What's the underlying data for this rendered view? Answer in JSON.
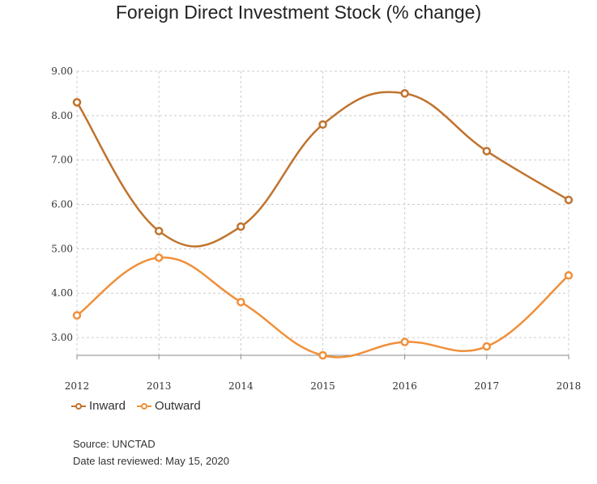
{
  "chart_data": {
    "type": "line",
    "title": "Foreign Direct Investment Stock (% change)",
    "x": [
      "2012",
      "2013",
      "2014",
      "2015",
      "2016",
      "2017",
      "2018"
    ],
    "ylim": [
      2.6,
      9.0
    ],
    "yticks": [
      "9.00",
      "8.00",
      "7.00",
      "6.00",
      "5.00",
      "4.00",
      "3.00"
    ],
    "ytick_values": [
      9,
      8,
      7,
      6,
      5,
      4,
      3
    ],
    "grid": true,
    "legend_position": "bottom-left",
    "series": [
      {
        "name": "Inward",
        "color": "#c0732e",
        "values": [
          8.3,
          5.4,
          5.5,
          7.8,
          8.5,
          7.2,
          6.1
        ]
      },
      {
        "name": "Outward",
        "color": "#f0903a",
        "values": [
          3.5,
          4.8,
          3.8,
          2.6,
          2.9,
          2.8,
          4.4
        ]
      }
    ]
  },
  "footer": {
    "source": "Source: UNCTAD",
    "reviewed": "Date last reviewed: May 15, 2020"
  }
}
